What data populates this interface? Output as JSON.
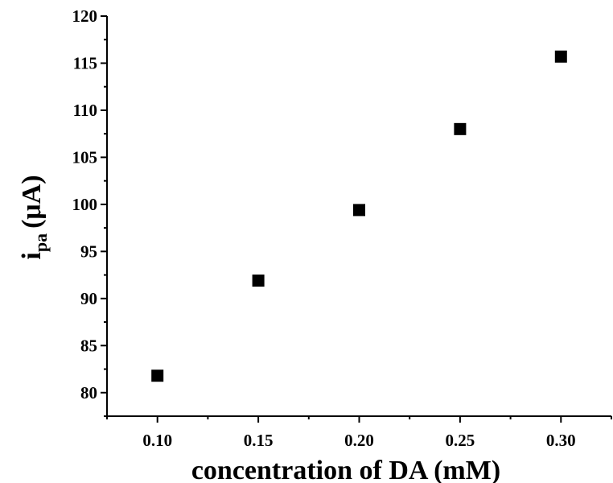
{
  "chart_data": {
    "type": "scatter",
    "xlabel": "concentration of DA (mM)",
    "ylabel": {
      "main": "i",
      "subscript": "pa",
      "unit": "(μA)"
    },
    "xlim": [
      0.075,
      0.325
    ],
    "ylim": [
      77.5,
      120
    ],
    "x_ticks": [
      "0.10",
      "0.15",
      "0.20",
      "0.25",
      "0.30"
    ],
    "y_ticks": [
      "80",
      "85",
      "90",
      "95",
      "100",
      "105",
      "110",
      "115",
      "120"
    ],
    "marker": "filled-square",
    "marker_color": "#000000",
    "grid": false,
    "points": [
      {
        "x": 0.1,
        "y": 81.8
      },
      {
        "x": 0.15,
        "y": 91.9
      },
      {
        "x": 0.2,
        "y": 99.4
      },
      {
        "x": 0.25,
        "y": 108.0
      },
      {
        "x": 0.3,
        "y": 115.7
      }
    ]
  }
}
